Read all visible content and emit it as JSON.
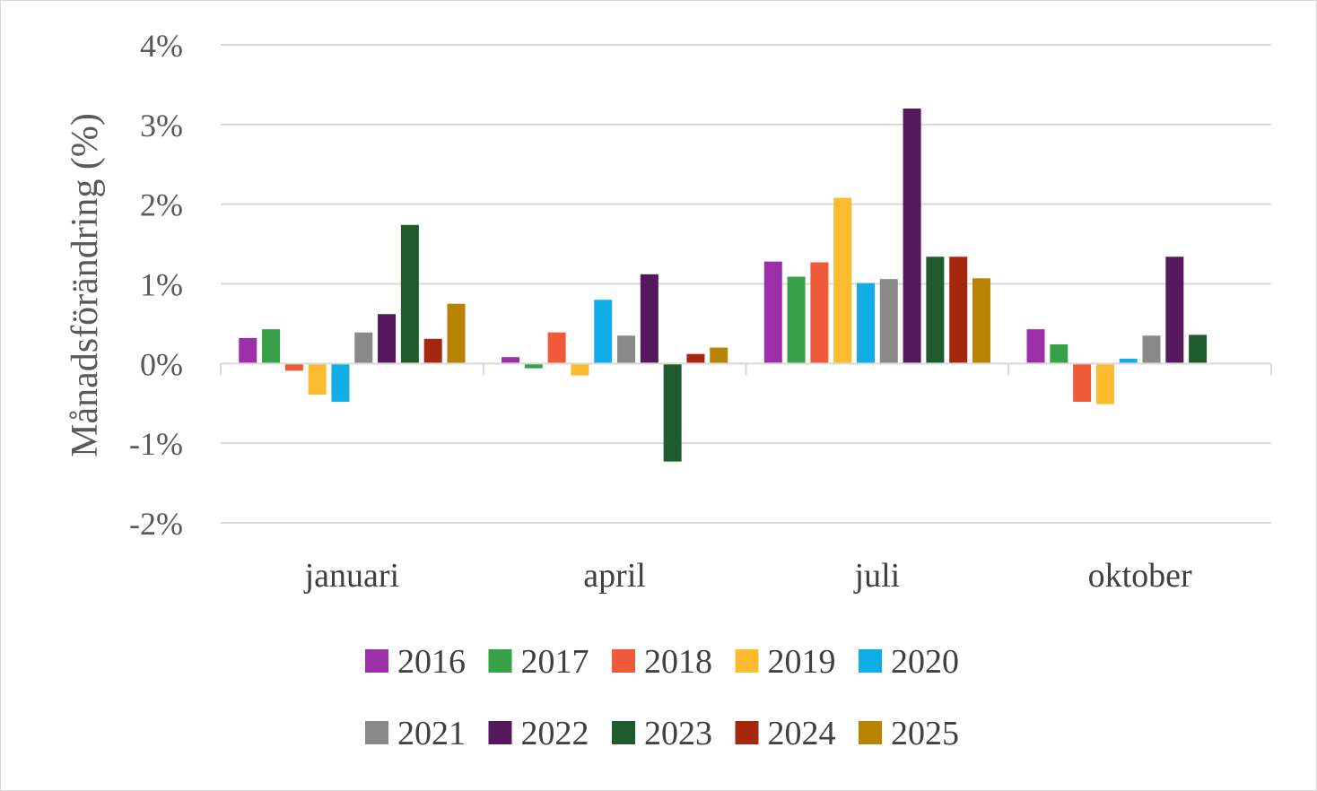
{
  "chart_data": {
    "type": "bar",
    "title": "",
    "xlabel": "",
    "ylabel": "Månadsförändring (%)",
    "ylim": [
      -2,
      4
    ],
    "yticks": [
      -2,
      -1,
      0,
      1,
      2,
      3,
      4
    ],
    "ytick_labels": [
      "-2%",
      "-1%",
      "0%",
      "1%",
      "2%",
      "3%",
      "4%"
    ],
    "grid": true,
    "legend_position": "bottom",
    "categories": [
      "januari",
      "april",
      "juli",
      "oktober"
    ],
    "series": [
      {
        "name": "2016",
        "color": "#9c2ea8",
        "values": [
          0.32,
          0.08,
          1.28,
          0.43
        ]
      },
      {
        "name": "2017",
        "color": "#36a148",
        "values": [
          0.43,
          -0.06,
          1.09,
          0.24
        ]
      },
      {
        "name": "2018",
        "color": "#ef5a3a",
        "values": [
          -0.09,
          0.39,
          1.27,
          -0.48
        ]
      },
      {
        "name": "2019",
        "color": "#fdbb30",
        "values": [
          -0.39,
          -0.15,
          2.08,
          -0.51
        ]
      },
      {
        "name": "2020",
        "color": "#10ade6",
        "values": [
          -0.48,
          0.8,
          1.01,
          0.06
        ]
      },
      {
        "name": "2021",
        "color": "#898989",
        "values": [
          0.39,
          0.35,
          1.06,
          0.35
        ]
      },
      {
        "name": "2022",
        "color": "#56185c",
        "values": [
          0.62,
          1.12,
          3.2,
          1.34
        ]
      },
      {
        "name": "2023",
        "color": "#1e5c2d",
        "values": [
          1.74,
          -1.23,
          1.34,
          0.36
        ]
      },
      {
        "name": "2024",
        "color": "#a52710",
        "values": [
          0.31,
          0.12,
          1.34,
          null
        ]
      },
      {
        "name": "2025",
        "color": "#b88300",
        "values": [
          0.75,
          0.2,
          1.07,
          null
        ]
      }
    ]
  }
}
